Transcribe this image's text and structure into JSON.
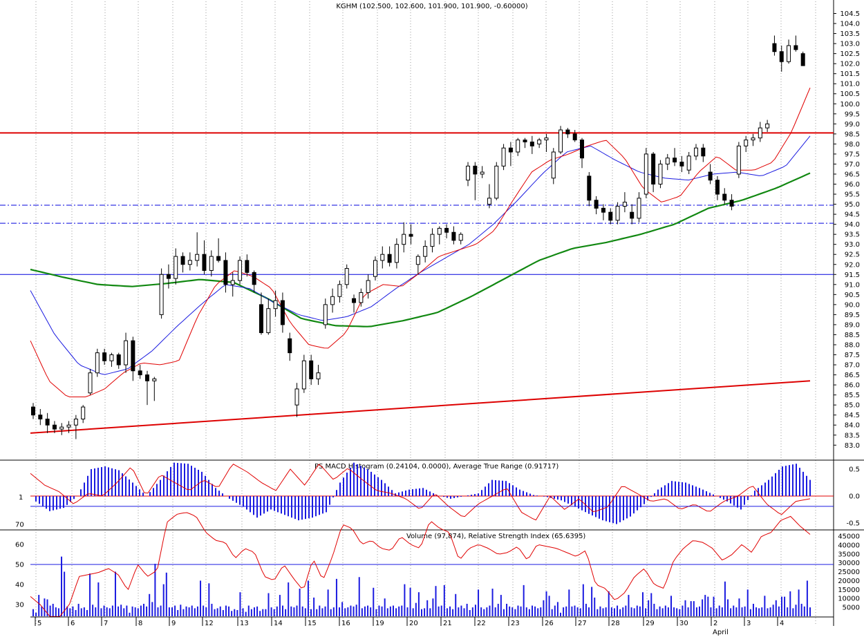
{
  "chart_data": {
    "type": "candlestick",
    "title": "KGHM (102.500, 102.600, 101.900, 101.900, -0.60000)",
    "price_axis": {
      "min": 82.5,
      "max": 104.75,
      "ticks": [
        "104.5",
        "104.0",
        "103.5",
        "103.0",
        "102.5",
        "102.0",
        "101.5",
        "101.0",
        "100.5",
        "100.0",
        "99.5",
        "99.0",
        "98.5",
        "98.0",
        "97.5",
        "97.0",
        "96.5",
        "96.0",
        "95.5",
        "95.0",
        "94.5",
        "94.0",
        "93.5",
        "93.0",
        "92.5",
        "92.0",
        "91.5",
        "91.0",
        "90.5",
        "90.0",
        "89.5",
        "89.0",
        "88.5",
        "88.0",
        "87.5",
        "87.0",
        "86.5",
        "86.0",
        "85.5",
        "85.0",
        "84.5",
        "84.0",
        "83.5",
        "83.0"
      ]
    },
    "x_axis": {
      "labels": [
        "5",
        "6",
        "7",
        "8",
        "9",
        "12",
        "13",
        "14",
        "15",
        "16",
        "19",
        "20",
        "21",
        "22",
        "23",
        "26",
        "27",
        "28",
        "29",
        "30",
        "2",
        "3",
        "4"
      ],
      "month_label": "April"
    },
    "horizontal_lines": [
      {
        "value": 98.55,
        "color": "#dd0000",
        "style": "solid"
      },
      {
        "value": 94.95,
        "color": "#0000dd",
        "style": "dashdot"
      },
      {
        "value": 94.05,
        "color": "#0000dd",
        "style": "dashdot"
      },
      {
        "value": 91.5,
        "color": "#0000dd",
        "style": "solid"
      }
    ],
    "trendline": {
      "from": 83.6,
      "to": 86.2,
      "color": "#dd0000"
    },
    "anchors": [
      [
        84.9,
        85.1,
        84.3,
        84.5
      ],
      [
        84.5,
        84.8,
        84.0,
        84.3
      ],
      [
        84.3,
        84.6,
        83.6,
        84.0
      ],
      [
        84.0,
        84.2,
        83.6,
        83.8
      ],
      [
        83.8,
        84.1,
        83.5,
        83.9
      ],
      [
        83.9,
        84.2,
        83.6,
        84.0
      ],
      [
        84.0,
        84.5,
        83.3,
        84.3
      ],
      [
        84.3,
        85.0,
        84.1,
        84.9
      ],
      [
        85.6,
        86.8,
        85.5,
        86.6
      ],
      [
        86.6,
        87.8,
        86.4,
        87.6
      ],
      [
        87.6,
        87.8,
        87.0,
        87.2
      ],
      [
        87.2,
        87.6,
        86.9,
        87.5
      ],
      [
        87.5,
        87.6,
        86.8,
        87.0
      ],
      [
        87.0,
        88.6,
        86.6,
        88.2
      ],
      [
        88.2,
        88.4,
        86.2,
        86.7
      ],
      [
        86.7,
        87.0,
        86.3,
        86.5
      ],
      [
        86.5,
        86.7,
        85.0,
        86.2
      ],
      [
        86.2,
        86.4,
        85.2,
        86.3
      ],
      [
        89.5,
        91.8,
        89.3,
        91.5
      ],
      [
        91.5,
        92.0,
        90.8,
        91.3
      ],
      [
        91.3,
        92.8,
        91.0,
        92.4
      ],
      [
        92.4,
        92.6,
        91.6,
        92.0
      ],
      [
        92.0,
        92.6,
        91.7,
        92.2
      ],
      [
        92.2,
        93.6,
        91.9,
        92.5
      ],
      [
        92.5,
        93.2,
        91.5,
        91.7
      ],
      [
        91.7,
        92.7,
        91.4,
        92.4
      ],
      [
        92.4,
        93.3,
        92.1,
        92.2
      ],
      [
        92.2,
        92.6,
        90.6,
        91.0
      ],
      [
        91.0,
        91.6,
        90.4,
        91.2
      ],
      [
        91.2,
        92.4,
        91.0,
        92.2
      ],
      [
        92.2,
        92.5,
        91.4,
        91.6
      ],
      [
        91.6,
        91.7,
        90.6,
        91.0
      ],
      [
        90.0,
        90.6,
        88.5,
        88.6
      ],
      [
        88.6,
        90.3,
        88.5,
        89.8
      ],
      [
        89.8,
        90.7,
        89.4,
        90.2
      ],
      [
        90.2,
        90.6,
        88.6,
        89.0
      ],
      [
        88.3,
        88.6,
        87.2,
        87.6
      ],
      [
        85.0,
        86.1,
        84.4,
        85.8
      ],
      [
        85.8,
        87.5,
        85.6,
        87.2
      ],
      [
        87.2,
        87.5,
        86.0,
        86.3
      ],
      [
        86.3,
        87.0,
        86.0,
        86.6
      ],
      [
        89.0,
        90.3,
        88.8,
        90.0
      ],
      [
        90.0,
        90.8,
        89.6,
        90.4
      ],
      [
        90.4,
        91.2,
        90.1,
        91.0
      ],
      [
        91.0,
        92.0,
        90.8,
        91.8
      ],
      [
        90.3,
        90.5,
        89.6,
        90.1
      ],
      [
        90.1,
        90.8,
        89.9,
        90.6
      ],
      [
        90.6,
        91.5,
        90.3,
        91.2
      ],
      [
        91.4,
        92.4,
        91.2,
        92.2
      ],
      [
        92.2,
        92.9,
        91.8,
        92.5
      ],
      [
        92.5,
        92.9,
        91.9,
        92.1
      ],
      [
        92.1,
        93.3,
        91.8,
        93.0
      ],
      [
        93.0,
        94.1,
        92.6,
        93.5
      ],
      [
        93.5,
        94.0,
        93.0,
        93.4
      ],
      [
        92.0,
        92.5,
        91.5,
        92.4
      ],
      [
        92.4,
        93.2,
        92.1,
        92.9
      ],
      [
        92.9,
        93.8,
        92.6,
        93.5
      ],
      [
        93.5,
        93.9,
        93.0,
        93.8
      ],
      [
        93.8,
        94.0,
        93.3,
        93.6
      ],
      [
        93.6,
        93.9,
        93.0,
        93.2
      ],
      [
        93.2,
        93.6,
        93.0,
        93.5
      ],
      [
        96.2,
        97.1,
        95.9,
        96.9
      ],
      [
        96.9,
        97.1,
        95.2,
        96.5
      ],
      [
        96.5,
        96.9,
        96.3,
        96.6
      ],
      [
        95.0,
        96.0,
        94.8,
        95.3
      ],
      [
        95.3,
        97.1,
        95.2,
        96.9
      ],
      [
        96.9,
        98.0,
        96.7,
        97.8
      ],
      [
        97.8,
        98.1,
        96.9,
        97.6
      ],
      [
        97.6,
        98.3,
        97.4,
        98.2
      ],
      [
        98.2,
        98.3,
        97.8,
        98.1
      ],
      [
        98.1,
        98.4,
        97.5,
        97.9
      ],
      [
        98.0,
        98.3,
        97.8,
        98.2
      ],
      [
        98.2,
        98.5,
        97.6,
        98.3
      ],
      [
        96.3,
        97.8,
        96.0,
        97.6
      ],
      [
        97.6,
        98.9,
        97.5,
        98.7
      ],
      [
        98.7,
        98.8,
        98.3,
        98.5
      ],
      [
        98.5,
        98.7,
        98.1,
        98.2
      ],
      [
        98.2,
        98.3,
        96.8,
        97.3
      ],
      [
        96.4,
        96.6,
        94.9,
        95.2
      ],
      [
        95.2,
        95.4,
        94.5,
        94.8
      ],
      [
        94.8,
        95.0,
        94.2,
        94.6
      ],
      [
        94.6,
        94.8,
        94.0,
        94.2
      ],
      [
        94.2,
        95.1,
        94.0,
        94.9
      ],
      [
        94.9,
        95.6,
        94.6,
        95.1
      ],
      [
        94.6,
        95.0,
        94.0,
        94.3
      ],
      [
        94.3,
        95.6,
        94.1,
        95.3
      ],
      [
        95.5,
        97.8,
        95.3,
        97.5
      ],
      [
        97.5,
        97.6,
        95.6,
        96.0
      ],
      [
        96.0,
        97.2,
        95.8,
        97.0
      ],
      [
        97.0,
        97.5,
        96.7,
        97.3
      ],
      [
        97.3,
        97.8,
        96.9,
        97.1
      ],
      [
        97.1,
        97.4,
        96.6,
        96.9
      ],
      [
        96.7,
        97.6,
        96.5,
        97.4
      ],
      [
        97.4,
        98.0,
        97.2,
        97.8
      ],
      [
        97.8,
        98.0,
        97.1,
        97.4
      ],
      [
        96.6,
        97.0,
        96.0,
        96.2
      ],
      [
        96.2,
        96.4,
        95.2,
        95.5
      ],
      [
        95.5,
        95.8,
        95.0,
        95.2
      ],
      [
        95.2,
        95.5,
        94.7,
        94.9
      ],
      [
        96.5,
        98.1,
        96.3,
        97.9
      ],
      [
        97.9,
        98.4,
        97.6,
        98.2
      ],
      [
        98.2,
        98.5,
        97.9,
        98.3
      ],
      [
        98.3,
        99.1,
        98.1,
        98.8
      ],
      [
        98.8,
        99.2,
        98.6,
        99.0
      ],
      [
        103.0,
        103.4,
        102.4,
        102.6
      ],
      [
        102.6,
        102.9,
        101.6,
        102.1
      ],
      [
        102.1,
        103.2,
        102.0,
        102.9
      ],
      [
        102.9,
        103.4,
        102.6,
        102.7
      ],
      [
        102.5,
        102.6,
        101.9,
        101.9
      ]
    ],
    "sma_short_anchors": [
      88.2,
      86.2,
      85.4,
      85.4,
      85.8,
      86.6,
      87.1,
      87.0,
      87.2,
      89.4,
      91.0,
      91.7,
      91.4,
      90.8,
      89.1,
      88.0,
      87.8,
      88.6,
      90.5,
      91.0,
      90.9,
      91.6,
      92.4,
      92.7,
      93.0,
      93.7,
      95.2,
      96.6,
      97.2,
      97.5,
      97.9,
      98.2,
      97.3,
      95.8,
      95.1,
      95.4,
      96.6,
      97.4,
      96.7,
      96.7,
      97.1,
      98.6,
      100.8
    ],
    "sma_mid_anchors": [
      90.7,
      88.5,
      87.0,
      86.5,
      86.8,
      87.7,
      88.9,
      90.0,
      91.0,
      90.8,
      90.1,
      89.5,
      89.2,
      89.4,
      89.9,
      90.8,
      91.6,
      92.3,
      93.0,
      94.0,
      95.2,
      96.5,
      97.6,
      97.9,
      97.2,
      96.6,
      96.3,
      96.2,
      96.5,
      96.6,
      96.4,
      96.9,
      98.4
    ],
    "sma_long_anchors": [
      91.75,
      91.35,
      91.0,
      90.9,
      91.05,
      91.25,
      91.1,
      90.3,
      89.3,
      88.95,
      88.9,
      89.2,
      89.6,
      90.4,
      91.3,
      92.2,
      92.8,
      93.1,
      93.5,
      94.0,
      94.8,
      95.2,
      95.8,
      96.55
    ],
    "panels": [
      {
        "title": "PS MACD Histogram  (0.24104, 0.0000), Average True Range (0.91717)",
        "y_ticks": [
          "0.5",
          "0.0",
          "-0.5"
        ],
        "left_label": "1",
        "histogram_anchors": [
          -0.1,
          -0.28,
          -0.22,
          0.0,
          0.5,
          0.55,
          0.48,
          0.25,
          0.0,
          0.3,
          0.62,
          0.6,
          0.45,
          0.15,
          -0.05,
          -0.2,
          -0.4,
          -0.25,
          -0.35,
          -0.45,
          -0.4,
          -0.3,
          0.25,
          0.62,
          0.5,
          0.3,
          0.05,
          0.12,
          0.15,
          0.02,
          -0.05,
          0.0,
          0.05,
          0.3,
          0.28,
          0.12,
          0.02,
          -0.02,
          -0.08,
          -0.2,
          -0.33,
          -0.45,
          -0.52,
          -0.38,
          -0.15,
          0.12,
          0.28,
          0.25,
          0.15,
          0.03,
          -0.1,
          -0.25,
          0.1,
          0.3,
          0.55,
          0.6,
          0.3
        ],
        "atr_anchors": [
          0.42,
          0.2,
          0.08,
          -0.15,
          0.05,
          0.0,
          0.25,
          0.55,
          0.0,
          0.4,
          0.25,
          0.1,
          0.3,
          0.15,
          0.6,
          0.45,
          0.25,
          0.1,
          0.5,
          0.2,
          0.6,
          0.3,
          0.52,
          0.3,
          0.1,
          0.05,
          -0.05,
          -0.25,
          0.05,
          -0.2,
          -0.4,
          -0.15,
          0.0,
          0.15,
          -0.3,
          -0.45,
          0.0,
          -0.25,
          -0.05,
          -0.3,
          -0.2,
          0.2,
          0.05,
          -0.1,
          -0.05,
          -0.25,
          -0.15,
          -0.3,
          -0.1,
          0.0,
          0.2,
          -0.15,
          -0.35,
          -0.1,
          -0.05
        ]
      },
      {
        "title": "Volume (97,874), Relative Strength Index (65.6395)",
        "rsi_ticks": [
          "70",
          "60",
          "50",
          "40",
          "30"
        ],
        "volume_ticks": [
          "45000",
          "40000",
          "35000",
          "30000",
          "25000",
          "20000",
          "15000",
          "10000",
          "5000"
        ],
        "rsi_level": 50,
        "rsi_anchors": [
          34,
          30,
          24,
          24,
          30,
          44,
          45,
          46,
          48,
          45,
          37,
          50,
          44,
          47,
          71,
          75,
          76,
          74,
          66,
          62,
          61,
          53,
          58,
          56,
          44,
          42,
          50,
          43,
          37,
          53,
          42,
          54,
          70,
          68,
          60,
          62,
          58,
          57,
          64,
          60,
          58,
          72,
          68,
          66,
          52,
          58,
          60,
          58,
          55,
          56,
          59,
          52,
          60,
          59,
          58,
          56,
          54,
          57,
          40,
          38,
          32,
          36,
          44,
          48,
          40,
          38,
          52,
          58,
          62,
          61,
          58,
          52,
          55,
          60,
          56,
          64,
          66,
          72,
          74,
          69,
          65
        ],
        "volume_values": [
          4000,
          2000,
          12000,
          5500,
          10000,
          9500,
          6000,
          7000,
          5000,
          4500,
          33500,
          25000,
          5500,
          4500,
          5500,
          3500,
          7000,
          4500,
          5000,
          3500,
          24000,
          6500,
          5000,
          19000,
          4500,
          6000,
          5000,
          4500,
          6000,
          25000,
          5500,
          6500,
          4500,
          6000,
          2000,
          5500,
          5000,
          4500,
          6000,
          7000,
          5500,
          12500,
          8000,
          29500,
          5000,
          6000,
          18000,
          24500,
          5000,
          5000,
          6000,
          3500,
          6500,
          4000,
          5500,
          5000,
          6000,
          4500,
          5500,
          20000,
          6000,
          5000,
          18500,
          7000,
          4000,
          4500,
          5500,
          3500,
          6000,
          5500,
          3000,
          4000,
          3500,
          13500,
          4500,
          2500,
          6000,
          4000,
          5000,
          5500,
          3000,
          4000,
          4000,
          13000,
          5000,
          4000,
          5500,
          12000,
          6000,
          4000,
          19000,
          5500,
          5000,
          6000,
          15500,
          5500,
          4500,
          20000,
          4000,
          10500,
          4000,
          6000,
          4500,
          5500,
          15000,
          4000,
          5000,
          21000,
          5000,
          8000,
          4500,
          5000,
          6000,
          5500,
          6500,
          22000,
          4500,
          5500,
          6000,
          5000,
          16000,
          4000,
          6000,
          5500,
          10000,
          4500,
          5500,
          6000,
          4500,
          5500,
          6000,
          18000,
          5000,
          16000,
          4500,
          7500,
          13500,
          4000,
          4500,
          9000,
          4500,
          10000,
          17000,
          5500,
          6000,
          17500,
          4500,
          5500,
          4000,
          12500,
          5000,
          6000,
          4500,
          7000,
          3500,
          5000,
          6500,
          15000,
          5000,
          4000,
          5000,
          6000,
          15500,
          5000,
          7000,
          12000,
          4000,
          7000,
          5500,
          5000,
          4000,
          6000,
          5500,
          17500,
          5000,
          4000,
          6000,
          5500,
          4500,
          5000,
          9000,
          14000,
          11500,
          4000,
          6000,
          8000,
          2000,
          5000,
          5500,
          15000,
          5500,
          6000,
          5000,
          4500,
          18000,
          7000,
          5000,
          16500,
          10500,
          4000,
          5500,
          4500,
          5000,
          14000,
          5000,
          4500,
          6000,
          4000,
          5000,
          6000,
          12000,
          5000,
          4500,
          6000,
          5500,
          13500,
          4500,
          9000,
          13000,
          7000,
          4000,
          5500,
          4500,
          6000,
          5000,
          11500,
          5000,
          4500,
          4000,
          6000,
          9000,
          5000,
          8500,
          8500,
          5000,
          5500,
          9500,
          12000,
          11000,
          5000,
          11000,
          4500,
          6000,
          5000,
          19500,
          9500,
          4500,
          6000,
          5000,
          10000,
          5000,
          5500,
          15000,
          4000,
          7000,
          5000,
          4500,
          5000,
          11500,
          4500,
          5000,
          6500,
          9000,
          5500,
          11000,
          11000,
          5000,
          14000,
          4500,
          6500,
          15000,
          7000,
          5500,
          20000,
          5000
        ]
      }
    ]
  }
}
